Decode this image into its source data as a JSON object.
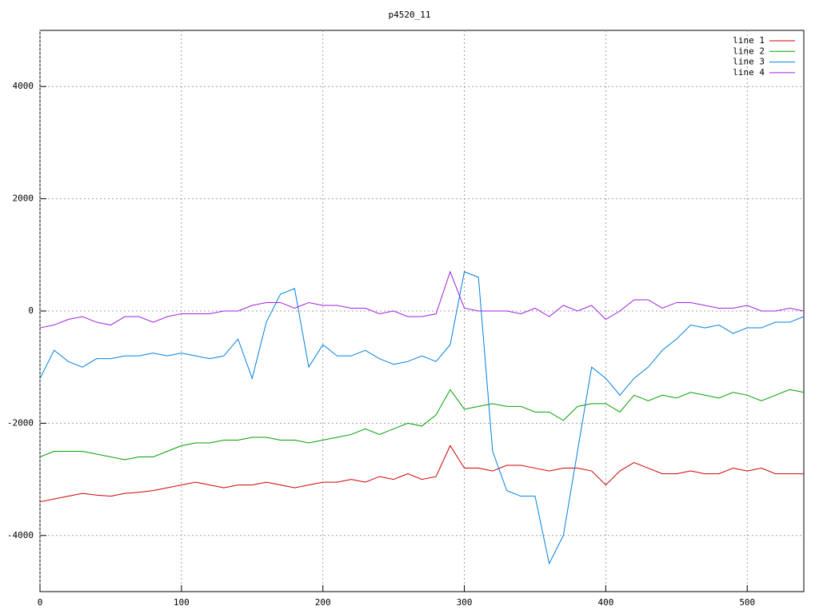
{
  "chart_data": {
    "type": "line",
    "title": "p4520_11",
    "x": [
      0,
      10,
      20,
      30,
      40,
      50,
      60,
      70,
      80,
      90,
      100,
      110,
      120,
      130,
      140,
      150,
      160,
      170,
      180,
      190,
      200,
      210,
      220,
      230,
      240,
      250,
      260,
      270,
      280,
      290,
      300,
      310,
      320,
      330,
      340,
      350,
      360,
      370,
      380,
      390,
      400,
      410,
      420,
      430,
      440,
      450,
      460,
      470,
      480,
      490,
      500,
      510,
      520,
      530,
      540
    ],
    "series": [
      {
        "name": "line 1",
        "color": "#d00000",
        "values": [
          -3400,
          -3350,
          -3300,
          -3250,
          -3280,
          -3300,
          -3250,
          -3230,
          -3200,
          -3150,
          -3100,
          -3050,
          -3100,
          -3150,
          -3100,
          -3100,
          -3050,
          -3100,
          -3150,
          -3100,
          -3050,
          -3050,
          -3000,
          -3050,
          -2950,
          -3000,
          -2900,
          -3000,
          -2950,
          -2400,
          -2800,
          -2800,
          -2850,
          -2750,
          -2750,
          -2800,
          -2850,
          -2800,
          -2800,
          -2850,
          -3100,
          -2850,
          -2700,
          -2800,
          -2900,
          -2900,
          -2850,
          -2900,
          -2900,
          -2800,
          -2850,
          -2800,
          -2900,
          -2900,
          -2900
        ]
      },
      {
        "name": "line 2",
        "color": "#00a000",
        "values": [
          -2600,
          -2500,
          -2500,
          -2500,
          -2550,
          -2600,
          -2650,
          -2600,
          -2600,
          -2500,
          -2400,
          -2350,
          -2350,
          -2300,
          -2300,
          -2250,
          -2250,
          -2300,
          -2300,
          -2350,
          -2300,
          -2250,
          -2200,
          -2100,
          -2200,
          -2100,
          -2000,
          -2050,
          -1850,
          -1400,
          -1750,
          -1700,
          -1650,
          -1700,
          -1700,
          -1800,
          -1800,
          -1950,
          -1700,
          -1650,
          -1650,
          -1800,
          -1500,
          -1600,
          -1500,
          -1550,
          -1450,
          -1500,
          -1550,
          -1450,
          -1500,
          -1600,
          -1500,
          -1400,
          -1450
        ]
      },
      {
        "name": "line 3",
        "color": "#0080e0",
        "values": [
          -1200,
          -700,
          -900,
          -1000,
          -850,
          -850,
          -800,
          -800,
          -750,
          -800,
          -750,
          -800,
          -850,
          -800,
          -500,
          -1200,
          -200,
          300,
          400,
          -1000,
          -600,
          -800,
          -800,
          -700,
          -850,
          -950,
          -900,
          -800,
          -900,
          -600,
          700,
          600,
          -2500,
          -3200,
          -3300,
          -3300,
          -4500,
          -4000,
          -2500,
          -1000,
          -1200,
          -1500,
          -1200,
          -1000,
          -700,
          -500,
          -250,
          -300,
          -250,
          -400,
          -300,
          -300,
          -200,
          -200,
          -100
        ]
      },
      {
        "name": "line 4",
        "color": "#a020e0",
        "values": [
          -300,
          -250,
          -150,
          -100,
          -200,
          -250,
          -100,
          -100,
          -200,
          -100,
          -50,
          -50,
          -50,
          0,
          0,
          100,
          150,
          150,
          50,
          150,
          100,
          100,
          50,
          50,
          -50,
          0,
          -100,
          -100,
          -50,
          700,
          50,
          0,
          0,
          0,
          -50,
          50,
          -100,
          100,
          0,
          100,
          -150,
          0,
          200,
          200,
          50,
          150,
          150,
          100,
          50,
          50,
          100,
          0,
          0,
          50,
          0
        ]
      }
    ],
    "xlim": [
      0,
      540
    ],
    "ylim": [
      -5000,
      5000
    ],
    "xticks": [
      0,
      100,
      200,
      300,
      400,
      500
    ],
    "yticks": [
      -4000,
      -2000,
      0,
      2000,
      4000
    ],
    "grid": true,
    "legend": "top-right"
  }
}
